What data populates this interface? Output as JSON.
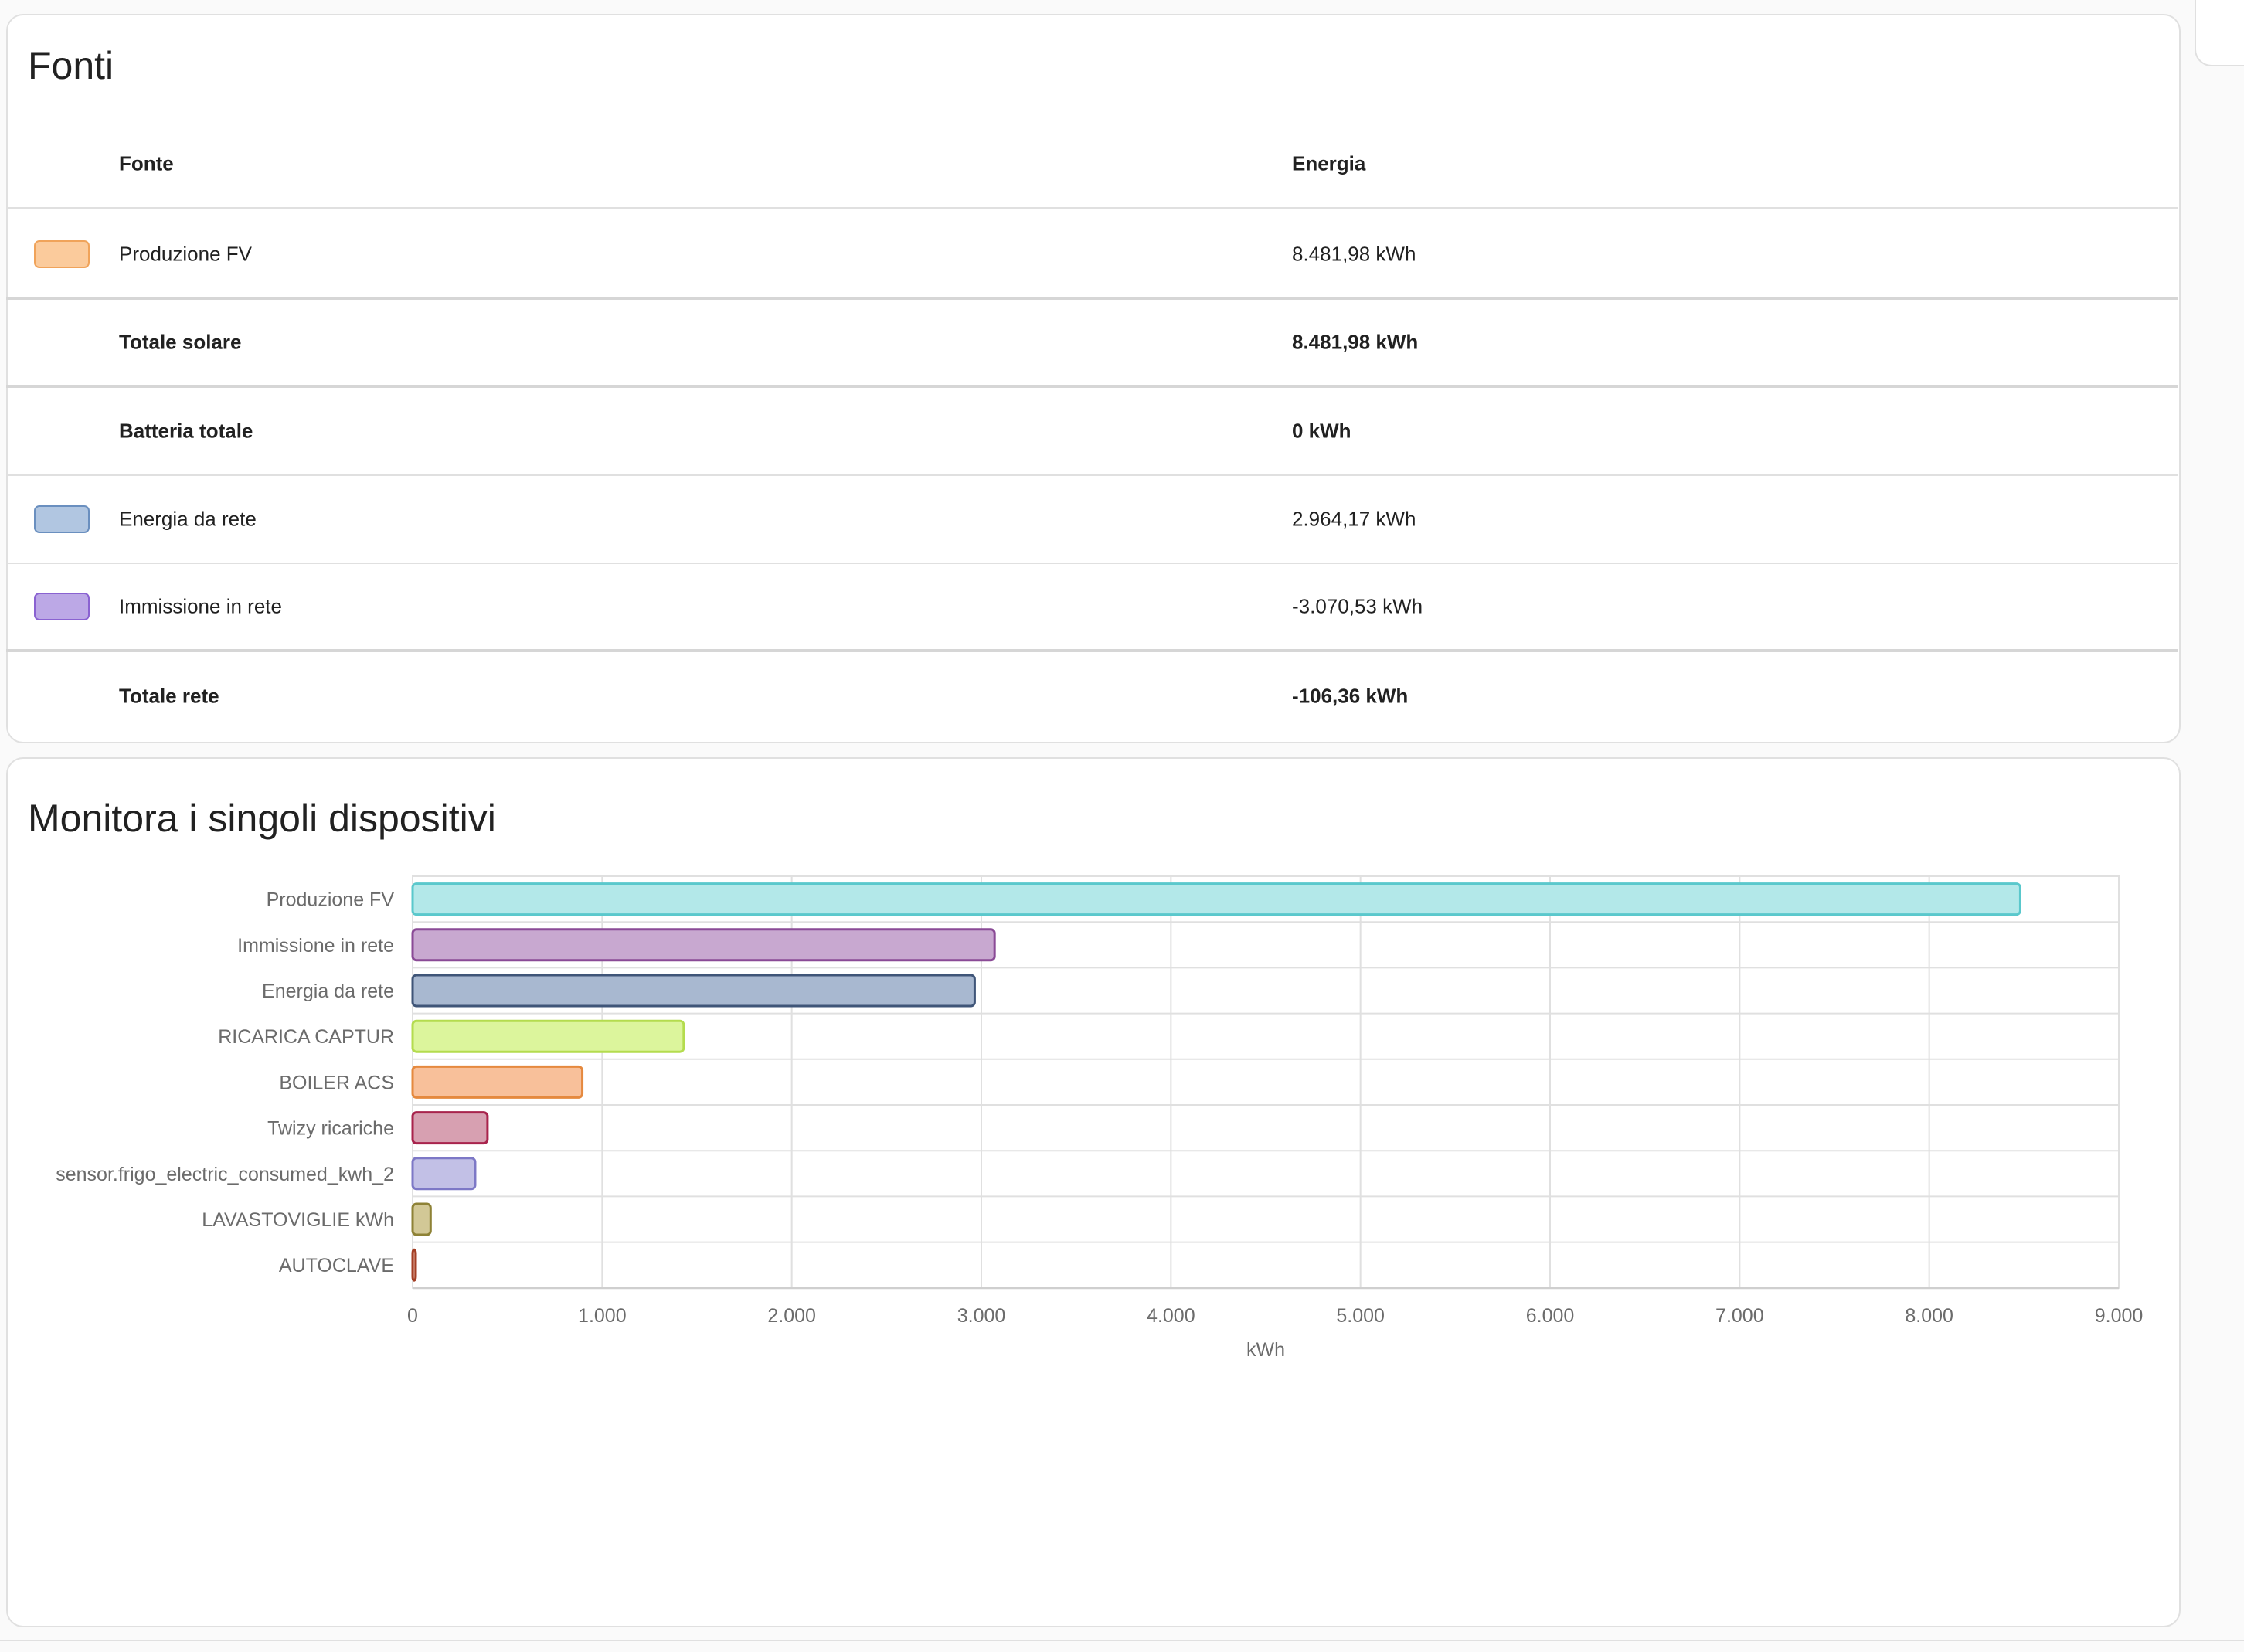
{
  "sources": {
    "title": "Fonti",
    "header": {
      "source": "Fonte",
      "energy": "Energia"
    },
    "rows": [
      {
        "label": "Produzione FV",
        "value": "8.481,98 kWh",
        "swatch_fill": "#fbcb9c",
        "swatch_border": "#f0a35a",
        "bold": false
      },
      {
        "label": "Totale solare",
        "value": "8.481,98 kWh",
        "bold": true
      },
      {
        "label": "Batteria totale",
        "value": "0 kWh",
        "bold": true
      },
      {
        "label": "Energia da rete",
        "value": "2.964,17 kWh",
        "swatch_fill": "#b1c6e1",
        "swatch_border": "#6a8fbf",
        "bold": false
      },
      {
        "label": "Immissione in rete",
        "value": "-3.070,53 kWh",
        "swatch_fill": "#bca8e6",
        "swatch_border": "#8a62d1",
        "bold": false
      },
      {
        "label": "Totale rete",
        "value": "-106,36 kWh",
        "bold": true
      }
    ]
  },
  "devices": {
    "title": "Monitora i singoli dispositivi"
  },
  "chart_data": {
    "type": "bar",
    "orientation": "horizontal",
    "categories": [
      "Produzione FV",
      "Immissione in rete",
      "Energia da rete",
      "RICARICA CAPTUR",
      "BOILER ACS",
      "Twizy ricariche",
      "sensor.frigo_electric_consumed_kwh_2",
      "LAVASTOVIGLIE kWh",
      "AUTOCLAVE"
    ],
    "values": [
      8480,
      3070,
      2965,
      1430,
      895,
      395,
      330,
      95,
      15
    ],
    "colors": [
      {
        "fill": "#b3e8e9",
        "stroke": "#5ac8cc"
      },
      {
        "fill": "#c8a8d0",
        "stroke": "#8a4a96"
      },
      {
        "fill": "#a8b8d0",
        "stroke": "#3f5578"
      },
      {
        "fill": "#dcf59c",
        "stroke": "#b4dc4e"
      },
      {
        "fill": "#f8c09a",
        "stroke": "#e5893e"
      },
      {
        "fill": "#d7a0b1",
        "stroke": "#a8234c"
      },
      {
        "fill": "#c2c0e6",
        "stroke": "#7d78c6"
      },
      {
        "fill": "#d2c896",
        "stroke": "#8e8236"
      },
      {
        "fill": "#e2a99a",
        "stroke": "#a33e24"
      }
    ],
    "xlim": [
      0,
      9000
    ],
    "xticks": [
      0,
      1000,
      2000,
      3000,
      4000,
      5000,
      6000,
      7000,
      8000,
      9000
    ],
    "xtick_labels": [
      "0",
      "1.000",
      "2.000",
      "3.000",
      "4.000",
      "5.000",
      "6.000",
      "7.000",
      "8.000",
      "9.000"
    ],
    "xlabel": "kWh",
    "ylabel": "",
    "title": "",
    "grid": true
  }
}
